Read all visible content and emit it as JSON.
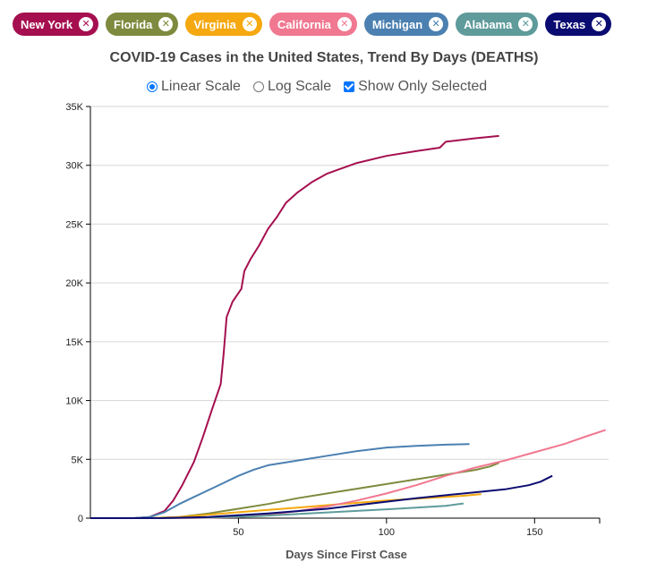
{
  "chips": [
    {
      "label": "New York",
      "color": "#a50f4f"
    },
    {
      "label": "Florida",
      "color": "#7e8a3e"
    },
    {
      "label": "Virginia",
      "color": "#f5a80f"
    },
    {
      "label": "California",
      "color": "#f07890"
    },
    {
      "label": "Michigan",
      "color": "#4b80b1"
    },
    {
      "label": "Alabama",
      "color": "#5f9b9b"
    },
    {
      "label": "Texas",
      "color": "#0b0c72"
    }
  ],
  "controls": {
    "linear_label": "Linear Scale",
    "log_label": "Log Scale",
    "show_selected_label": "Show Only Selected",
    "scale": "linear",
    "show_only_selected": true
  },
  "chart_data": {
    "type": "line",
    "title": "COVID-19 Cases in the United States, Trend By Days (DEATHS)",
    "xlabel": "Days Since First Case",
    "ylabel": "",
    "xlim": [
      0,
      175
    ],
    "ylim": [
      0,
      35000
    ],
    "x_ticks": [
      50,
      100,
      150
    ],
    "y_ticks": [
      0,
      5000,
      10000,
      15000,
      20000,
      25000,
      30000,
      35000
    ],
    "y_tick_labels": [
      "0",
      "5K",
      "10K",
      "15K",
      "20K",
      "25K",
      "30K",
      "35K"
    ],
    "grid": true,
    "series": [
      {
        "name": "New York",
        "color": "#a50f4f",
        "points": [
          [
            0,
            0
          ],
          [
            15,
            10
          ],
          [
            20,
            100
          ],
          [
            25,
            600
          ],
          [
            28,
            1500
          ],
          [
            31,
            2800
          ],
          [
            35,
            4800
          ],
          [
            38,
            6900
          ],
          [
            41,
            9200
          ],
          [
            44,
            11400
          ],
          [
            45,
            14000
          ],
          [
            46,
            17100
          ],
          [
            48,
            18400
          ],
          [
            51,
            19500
          ],
          [
            52,
            21000
          ],
          [
            54,
            22000
          ],
          [
            57,
            23200
          ],
          [
            60,
            24600
          ],
          [
            63,
            25600
          ],
          [
            66,
            26800
          ],
          [
            70,
            27700
          ],
          [
            75,
            28600
          ],
          [
            80,
            29300
          ],
          [
            90,
            30200
          ],
          [
            100,
            30800
          ],
          [
            110,
            31200
          ],
          [
            118,
            31500
          ],
          [
            120,
            32000
          ],
          [
            130,
            32300
          ],
          [
            138,
            32500
          ]
        ]
      },
      {
        "name": "Florida",
        "color": "#7e8a3e",
        "points": [
          [
            0,
            0
          ],
          [
            20,
            10
          ],
          [
            30,
            100
          ],
          [
            40,
            400
          ],
          [
            50,
            800
          ],
          [
            60,
            1200
          ],
          [
            70,
            1700
          ],
          [
            80,
            2100
          ],
          [
            90,
            2500
          ],
          [
            100,
            2900
          ],
          [
            110,
            3300
          ],
          [
            120,
            3700
          ],
          [
            130,
            4100
          ],
          [
            135,
            4400
          ],
          [
            138,
            4700
          ]
        ]
      },
      {
        "name": "Virginia",
        "color": "#f5a80f",
        "points": [
          [
            0,
            0
          ],
          [
            20,
            10
          ],
          [
            30,
            100
          ],
          [
            40,
            300
          ],
          [
            50,
            500
          ],
          [
            60,
            700
          ],
          [
            70,
            900
          ],
          [
            80,
            1100
          ],
          [
            90,
            1300
          ],
          [
            100,
            1500
          ],
          [
            110,
            1650
          ],
          [
            120,
            1800
          ],
          [
            126,
            1900
          ],
          [
            132,
            2050
          ]
        ]
      },
      {
        "name": "California",
        "color": "#f07890",
        "points": [
          [
            0,
            0
          ],
          [
            35,
            10
          ],
          [
            50,
            100
          ],
          [
            60,
            300
          ],
          [
            70,
            600
          ],
          [
            80,
            1000
          ],
          [
            90,
            1500
          ],
          [
            100,
            2100
          ],
          [
            110,
            2800
          ],
          [
            120,
            3600
          ],
          [
            130,
            4300
          ],
          [
            140,
            4900
          ],
          [
            150,
            5600
          ],
          [
            160,
            6300
          ],
          [
            168,
            7000
          ],
          [
            174,
            7500
          ]
        ]
      },
      {
        "name": "Michigan",
        "color": "#4b80b1",
        "points": [
          [
            0,
            0
          ],
          [
            15,
            10
          ],
          [
            20,
            100
          ],
          [
            25,
            500
          ],
          [
            30,
            1200
          ],
          [
            35,
            1800
          ],
          [
            40,
            2400
          ],
          [
            45,
            3000
          ],
          [
            50,
            3600
          ],
          [
            55,
            4100
          ],
          [
            60,
            4500
          ],
          [
            70,
            4900
          ],
          [
            80,
            5300
          ],
          [
            90,
            5700
          ],
          [
            100,
            6000
          ],
          [
            110,
            6150
          ],
          [
            120,
            6250
          ],
          [
            128,
            6300
          ]
        ]
      },
      {
        "name": "Alabama",
        "color": "#5f9b9b",
        "points": [
          [
            0,
            0
          ],
          [
            25,
            10
          ],
          [
            40,
            50
          ],
          [
            55,
            150
          ],
          [
            70,
            350
          ],
          [
            85,
            550
          ],
          [
            100,
            750
          ],
          [
            110,
            900
          ],
          [
            120,
            1050
          ],
          [
            126,
            1250
          ]
        ]
      },
      {
        "name": "Texas",
        "color": "#0b0c72",
        "points": [
          [
            0,
            0
          ],
          [
            25,
            10
          ],
          [
            40,
            100
          ],
          [
            50,
            250
          ],
          [
            60,
            400
          ],
          [
            70,
            600
          ],
          [
            80,
            800
          ],
          [
            90,
            1100
          ],
          [
            100,
            1400
          ],
          [
            110,
            1700
          ],
          [
            120,
            1950
          ],
          [
            130,
            2200
          ],
          [
            140,
            2450
          ],
          [
            148,
            2800
          ],
          [
            152,
            3100
          ],
          [
            156,
            3600
          ]
        ]
      }
    ]
  }
}
